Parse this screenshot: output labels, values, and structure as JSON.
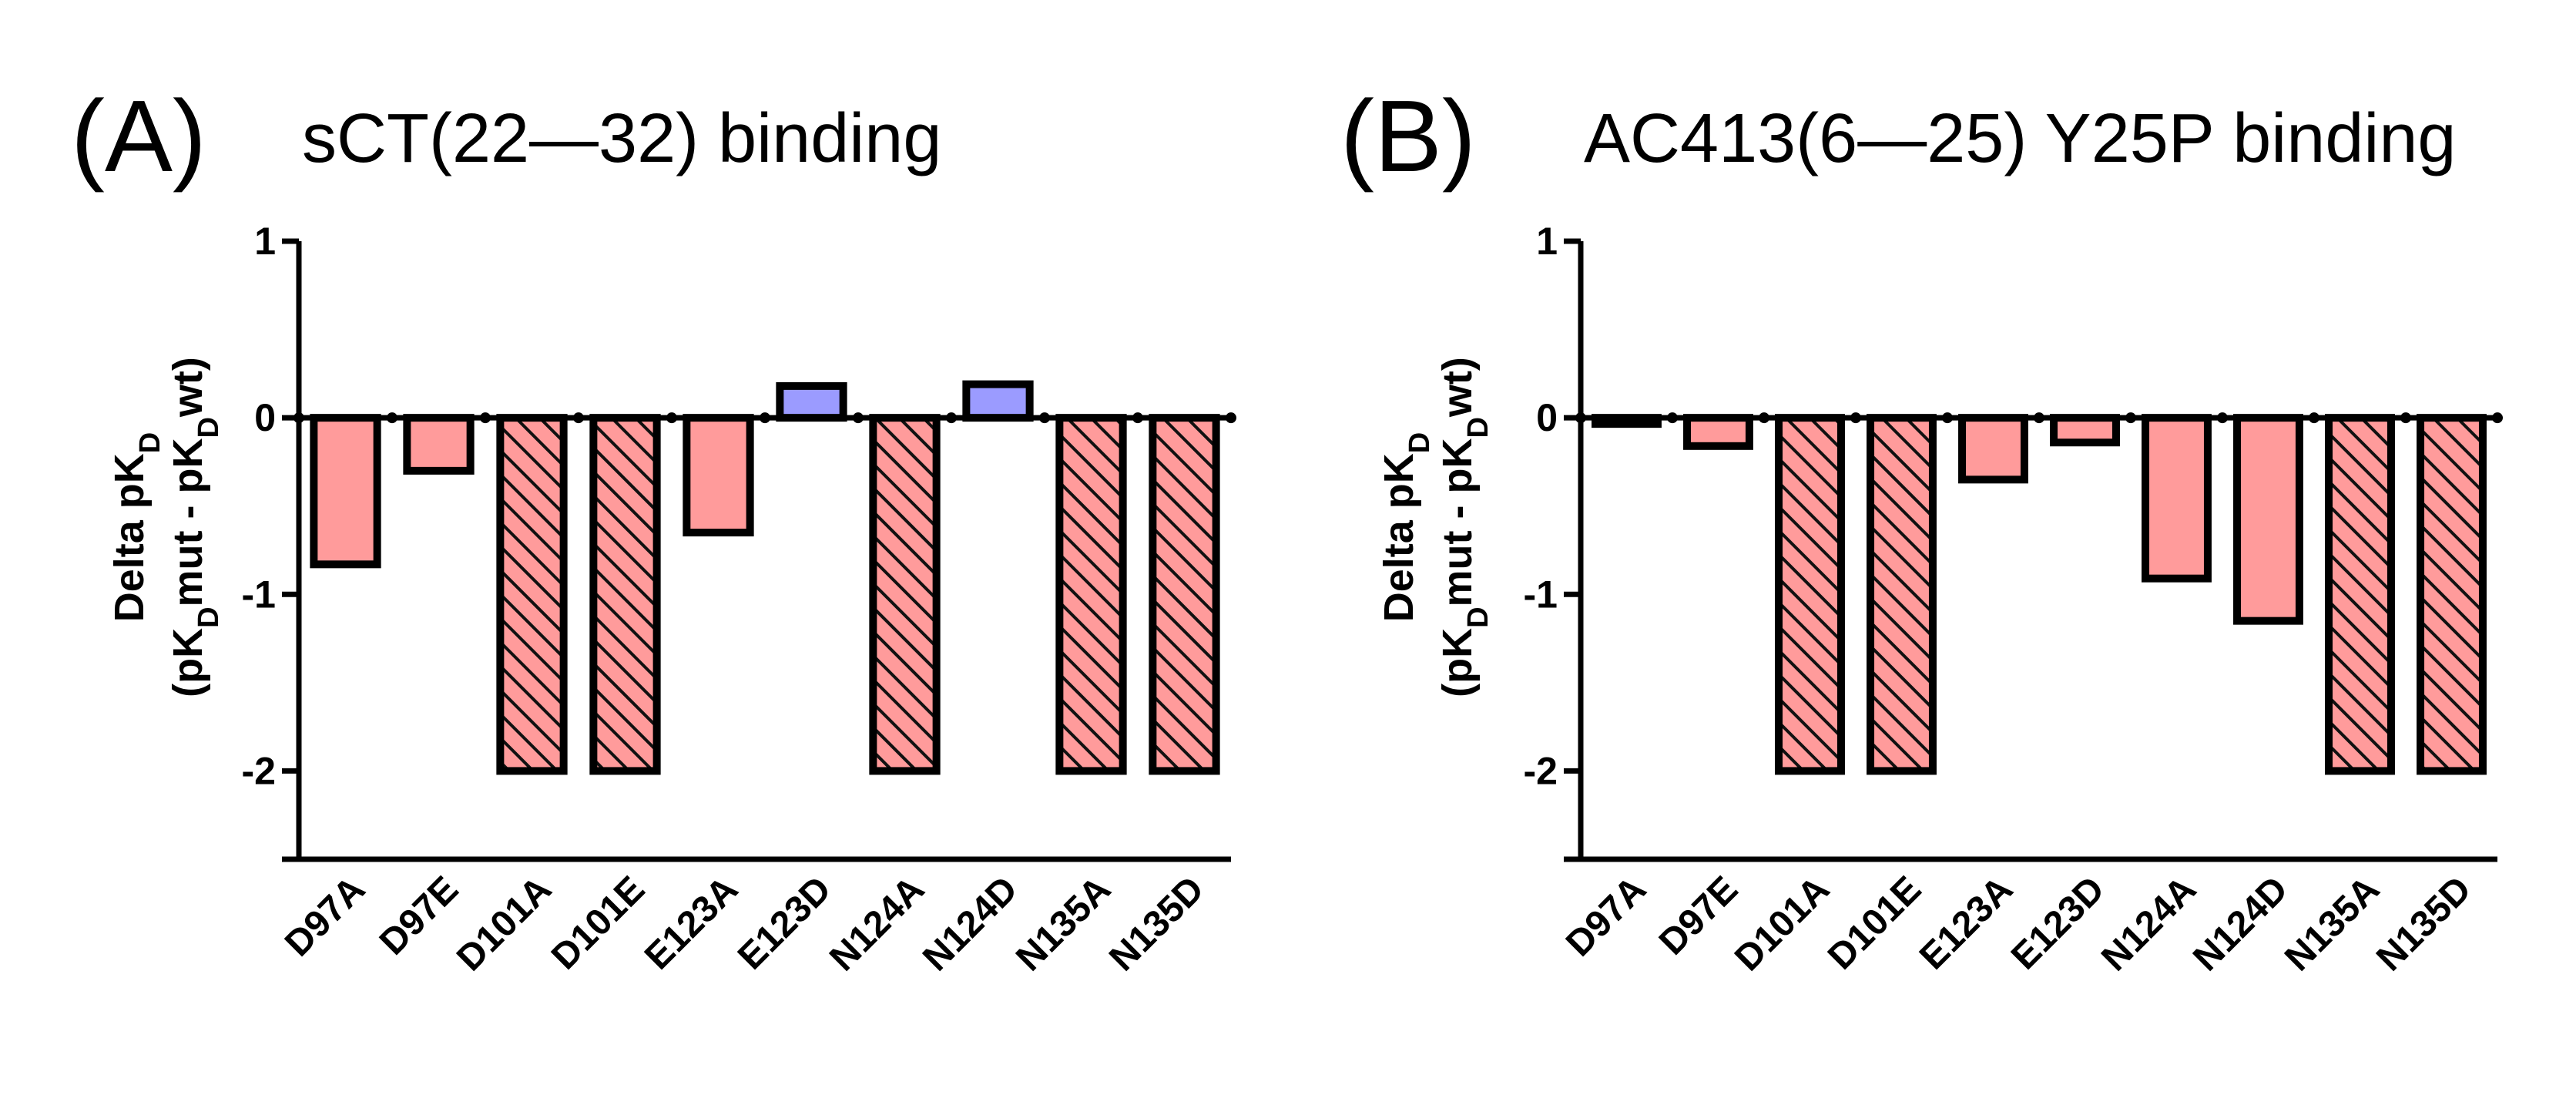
{
  "colors": {
    "negative": "#ff9b9b",
    "positive": "#9b9bff",
    "hatch": "#111111"
  },
  "chart_data": [
    {
      "type": "bar",
      "panel": "(A)",
      "title": "sCT(22—32) binding",
      "ylabel_line1": "Delta pK",
      "ylabel_sub1": "D",
      "ylabel_line2_parts": [
        "(pK",
        "D",
        "mut - pK",
        "D",
        "wt)"
      ],
      "ylim": [
        -2.5,
        1
      ],
      "yticks": [
        1,
        0,
        -1,
        -2
      ],
      "categories": [
        "D97A",
        "D97E",
        "D101A",
        "D101E",
        "E123A",
        "E123D",
        "N124A",
        "N124D",
        "N135A",
        "N135D"
      ],
      "values": [
        -0.83,
        -0.3,
        -2,
        -2,
        -0.65,
        0.18,
        -2,
        0.19,
        -2,
        -2
      ],
      "hatched": [
        false,
        false,
        true,
        true,
        false,
        false,
        true,
        false,
        true,
        true
      ]
    },
    {
      "type": "bar",
      "panel": "(B)",
      "title": "AC413(6—25) Y25P binding",
      "ylabel_line1": "Delta pK",
      "ylabel_sub1": "D",
      "ylabel_line2_parts": [
        "(pK",
        "D",
        "mut - pK",
        "D",
        "wt)"
      ],
      "ylim": [
        -2.5,
        1
      ],
      "yticks": [
        1,
        0,
        -1,
        -2
      ],
      "categories": [
        "D97A",
        "D97E",
        "D101A",
        "D101E",
        "E123A",
        "E123D",
        "N124A",
        "N124D",
        "N135A",
        "N135D"
      ],
      "values": [
        -0.03,
        -0.16,
        -2,
        -2,
        -0.35,
        -0.14,
        -0.91,
        -1.15,
        -2,
        -2
      ],
      "hatched": [
        false,
        false,
        true,
        true,
        false,
        false,
        false,
        false,
        true,
        true
      ]
    }
  ]
}
